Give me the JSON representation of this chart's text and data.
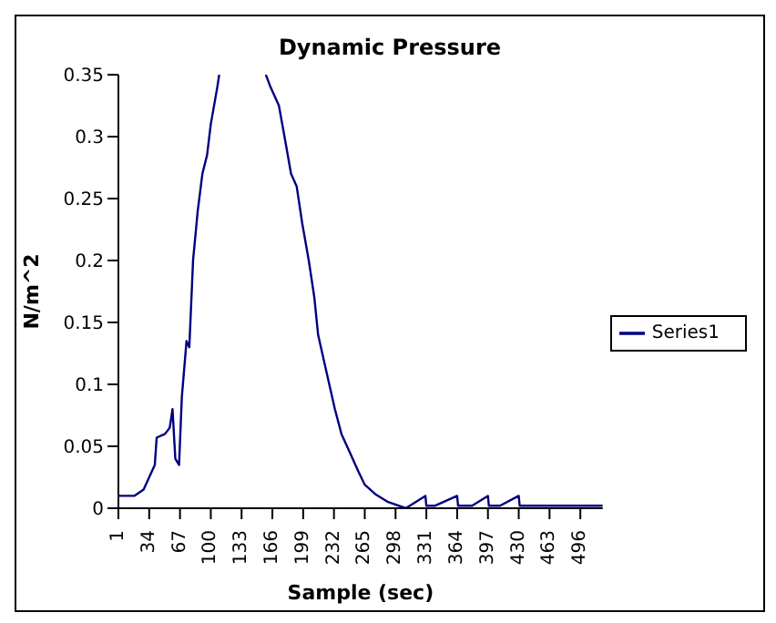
{
  "chart_data": {
    "type": "line",
    "title": "Dynamic Pressure",
    "xlabel": "Sample (sec)",
    "ylabel": "N/m^2",
    "x": [
      1,
      18,
      28,
      34,
      40,
      42,
      51,
      56,
      59,
      62,
      66,
      69,
      74,
      77,
      81,
      86,
      91,
      96,
      100,
      107,
      109,
      130,
      159,
      164,
      173,
      179,
      186,
      192,
      198,
      205,
      211,
      215,
      224,
      233,
      240,
      249,
      258,
      265,
      277,
      290,
      309,
      330,
      331,
      340,
      364,
      365,
      380,
      397,
      398,
      410,
      430,
      431,
      450,
      480,
      520
    ],
    "series": [
      {
        "name": "Series1",
        "color": "#000080",
        "values": [
          0.01,
          0.01,
          0.015,
          0.025,
          0.035,
          0.057,
          0.06,
          0.065,
          0.08,
          0.04,
          0.035,
          0.09,
          0.135,
          0.13,
          0.2,
          0.24,
          0.27,
          0.285,
          0.31,
          0.34,
          0.35,
          null,
          0.35,
          0.34,
          0.325,
          0.3,
          0.27,
          0.26,
          0.23,
          0.2,
          0.17,
          0.14,
          0.11,
          0.08,
          0.06,
          0.045,
          0.03,
          0.019,
          0.011,
          0.005,
          0,
          0.01,
          0.002,
          0.002,
          0.01,
          0.002,
          0.002,
          0.01,
          0.002,
          0.002,
          0.01,
          0.002,
          0.002,
          0.002,
          0.002
        ]
      }
    ],
    "xlim": [
      1,
      520
    ],
    "xticks": [
      1,
      34,
      67,
      100,
      133,
      166,
      199,
      232,
      265,
      298,
      331,
      364,
      397,
      430,
      463,
      496
    ],
    "ylim": [
      0,
      0.35
    ],
    "yticks": [
      0,
      0.05,
      0.1,
      0.15,
      0.2,
      0.25,
      0.3,
      0.35
    ],
    "grid": false,
    "legend": "right",
    "marker": "none",
    "line_style": "solid"
  }
}
